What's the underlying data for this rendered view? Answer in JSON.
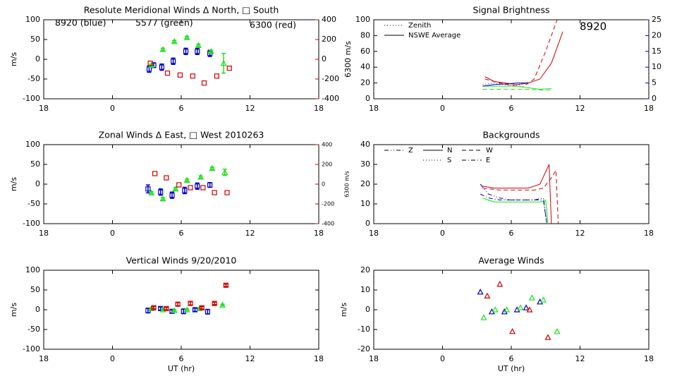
{
  "chart_data": [
    {
      "type": "scatter",
      "title": "Resolute Meridional Winds Δ North, □ South",
      "ylabel": "m/s",
      "y2label": "6300 m/s",
      "y2color": "#d00000",
      "xlim": [
        -6,
        18
      ],
      "xticks": [
        {
          "value": -6,
          "label": "18"
        },
        0,
        6,
        12,
        18
      ],
      "ylim": [
        -100,
        100
      ],
      "yticks": [
        -100,
        -50,
        0,
        50,
        100
      ],
      "y2lim": [
        -400,
        400
      ],
      "y2ticks": [
        -400,
        -200,
        0,
        200,
        400
      ],
      "annotations": [
        {
          "text": "8920 (blue)",
          "color": "#0000c0"
        },
        {
          "text": "5577 (green)",
          "color": "#20e020"
        },
        {
          "text": "6300 (red)",
          "color": "#d00000"
        }
      ],
      "series": [
        {
          "color": "#0000c0",
          "marker": "square",
          "x": [
            3.2,
            3.6,
            4.3,
            5.3,
            6.4,
            7.4,
            8.5
          ],
          "values": [
            -25,
            -15,
            -20,
            -5,
            20,
            20,
            15
          ],
          "errors": [
            8,
            6,
            8,
            8,
            8,
            8,
            8
          ]
        },
        {
          "color": "#20e020",
          "marker": "triangle",
          "x": [
            3.4,
            4.4,
            5.4,
            6.5,
            7.5,
            8.6,
            9.7
          ],
          "values": [
            -15,
            25,
            45,
            55,
            35,
            20,
            -10
          ],
          "errors": [
            3,
            3,
            3,
            3,
            3,
            3,
            25
          ]
        },
        {
          "color": "#d00000",
          "marker": "square",
          "axis": "y2",
          "x": [
            3.3,
            4.8,
            5.9,
            7.0,
            8.0,
            9.1,
            10.2
          ],
          "values": [
            -40,
            -140,
            -160,
            -170,
            -240,
            -170,
            -90
          ]
        }
      ]
    },
    {
      "type": "line",
      "title": "Signal Brightness",
      "y2color": "#0000c0",
      "xlim": [
        -6,
        18
      ],
      "xticks": [
        {
          "value": -6,
          "label": "18"
        },
        0,
        6,
        12,
        18
      ],
      "ylim": [
        0,
        100
      ],
      "yticks": [
        0,
        20,
        40,
        60,
        80,
        100
      ],
      "y2lim": [
        0,
        25
      ],
      "y2ticks": [
        0,
        5,
        10,
        15,
        20,
        25
      ],
      "annotations": [
        {
          "text": "8920",
          "color": "#0000c0"
        }
      ],
      "legend": [
        {
          "label": "Zenith",
          "style": "dotted"
        },
        {
          "label": "NSWE Average",
          "style": "solid"
        }
      ],
      "series": [
        {
          "color": "#d00000",
          "style": "solid",
          "x": [
            3.7,
            4.5,
            5.5,
            6.5,
            7.5,
            8.5,
            9.5,
            10.5
          ],
          "values": [
            28,
            22,
            20,
            18,
            20,
            25,
            45,
            85
          ]
        },
        {
          "color": "#d00000",
          "style": "dashed",
          "x": [
            3.7,
            5,
            6,
            7,
            8,
            9,
            10
          ],
          "values": [
            25,
            20,
            17,
            15,
            25,
            60,
            100
          ]
        },
        {
          "color": "#20e020",
          "style": "solid",
          "x": [
            3.5,
            4.5,
            5.5,
            6.5,
            7.5,
            8.5,
            9.5
          ],
          "values": [
            16,
            16,
            16,
            16,
            14,
            12,
            13
          ]
        },
        {
          "color": "#20e020",
          "style": "dashed",
          "x": [
            3.5,
            4.5,
            5.5,
            6.5,
            7.5,
            8.5,
            9.5
          ],
          "values": [
            12,
            12,
            12,
            12,
            12,
            11,
            11
          ]
        },
        {
          "color": "#0000c0",
          "style": "solid",
          "axis": "y2",
          "x": [
            3.5,
            4.5,
            5.5,
            6.5,
            7.5
          ],
          "values": [
            4,
            4.5,
            4.7,
            5,
            5
          ]
        },
        {
          "color": "#0000c0",
          "style": "dotted",
          "axis": "y2",
          "x": [
            3.5,
            4.5,
            5.5,
            6.5,
            7.5
          ],
          "values": [
            4.5,
            5,
            4.5,
            4.2,
            5.2
          ]
        }
      ]
    },
    {
      "type": "scatter",
      "title": "Zonal Winds Δ East, □ West 2010263",
      "ylabel": "m/s",
      "y2label": "6300 m/s",
      "y2color": "#d00000",
      "xlim": [
        -6,
        18
      ],
      "xticks": [
        {
          "value": -6,
          "label": "18"
        },
        0,
        6,
        12,
        18
      ],
      "ylim": [
        -100,
        100
      ],
      "yticks": [
        -100,
        -50,
        0,
        50,
        100
      ],
      "y2lim": [
        -400,
        400
      ],
      "y2ticks": [
        -400,
        -200,
        0,
        200,
        400
      ],
      "series": [
        {
          "color": "#0000c0",
          "marker": "square",
          "x": [
            3.1,
            4.2,
            5.2,
            6.3,
            7.4,
            8.5
          ],
          "values": [
            -12,
            -20,
            -28,
            -16,
            -5,
            -2
          ],
          "errors": [
            10,
            8,
            8,
            8,
            8,
            6
          ]
        },
        {
          "color": "#20e020",
          "marker": "triangle",
          "x": [
            3.4,
            4.4,
            5.5,
            6.5,
            7.7,
            8.7,
            9.8
          ],
          "values": [
            -22,
            -37,
            -12,
            10,
            18,
            40,
            30
          ],
          "errors": [
            3,
            3,
            3,
            3,
            3,
            3,
            8
          ]
        },
        {
          "color": "#d00000",
          "marker": "square",
          "axis": "y2",
          "x": [
            3.7,
            4.7,
            5.8,
            6.8,
            7.9,
            8.9,
            10.0
          ],
          "values": [
            107,
            64,
            -7,
            -36,
            -36,
            -86,
            -86
          ]
        }
      ]
    },
    {
      "type": "line",
      "title": "Backgrounds",
      "xlim": [
        -6,
        18
      ],
      "xticks": [
        {
          "value": -6,
          "label": "18"
        },
        0,
        6,
        12,
        18
      ],
      "ylim": [
        0,
        40
      ],
      "yticks": [
        0,
        10,
        20,
        30,
        40
      ],
      "legend": [
        {
          "label": "Z",
          "style": "dashdotdot"
        },
        {
          "label": "N",
          "style": "solid"
        },
        {
          "label": "W",
          "style": "dashed"
        },
        {
          "label": "S",
          "style": "dotted"
        },
        {
          "label": "E",
          "style": "dashdot"
        }
      ],
      "series": [
        {
          "color": "#d00000",
          "style": "solid",
          "x": [
            3.5,
            4.5,
            5.5,
            6.5,
            7.5,
            8.5,
            9.3,
            9.5
          ],
          "values": [
            19,
            18,
            18,
            18,
            18,
            20,
            30,
            0
          ]
        },
        {
          "color": "#d00000",
          "style": "dashed",
          "x": [
            3.5,
            5,
            6.5,
            8,
            8.8,
            9.6,
            9.9,
            10.1
          ],
          "values": [
            18,
            17,
            17,
            17,
            18,
            24,
            27,
            0
          ]
        },
        {
          "color": "#0000c0",
          "style": "dashdotdot",
          "x": [
            3.3,
            4,
            5,
            6,
            7,
            8,
            8.8,
            9.1
          ],
          "values": [
            20,
            15,
            13,
            12,
            12,
            12,
            13,
            0
          ]
        },
        {
          "color": "#0000c0",
          "style": "dashdot",
          "x": [
            3.3,
            4,
            5,
            6,
            7,
            8,
            8.8,
            9.1
          ],
          "values": [
            15,
            13,
            12,
            12,
            12,
            12,
            12,
            0
          ]
        },
        {
          "color": "#20e020",
          "style": "dotted",
          "x": [
            3.5,
            4.5,
            5.5,
            6.5,
            7.5,
            8.5,
            9.0,
            9.2
          ],
          "values": [
            12,
            11,
            11,
            11,
            11,
            11,
            11,
            0
          ]
        },
        {
          "color": "#20e020",
          "style": "solid",
          "x": [
            3.5,
            4.5,
            5.5,
            6.5,
            7.5,
            8.5,
            9.0,
            9.2
          ],
          "values": [
            13,
            11,
            11,
            11,
            11,
            11,
            12,
            0
          ]
        }
      ]
    },
    {
      "type": "scatter",
      "title": "Vertical Winds 9/20/2010",
      "ylabel": "m/s",
      "xlabel": "UT (hr)",
      "xlim": [
        -6,
        18
      ],
      "xticks": [
        {
          "value": -6,
          "label": "18"
        },
        0,
        6,
        12,
        18
      ],
      "ylim": [
        -100,
        100
      ],
      "yticks": [
        -100,
        -50,
        0,
        50,
        100
      ],
      "series": [
        {
          "color": "#0000c0",
          "marker": "square",
          "x": [
            3.1,
            4.2,
            5.2,
            6.2,
            7.2,
            8.3
          ],
          "values": [
            -2,
            3,
            -4,
            -4,
            0,
            -5
          ],
          "errors": [
            6,
            4,
            4,
            6,
            4,
            6
          ]
        },
        {
          "color": "#20e020",
          "marker": "triangle",
          "x": [
            3.4,
            4.4,
            5.4,
            6.5,
            7.6,
            9.6
          ],
          "values": [
            3,
            0,
            -2,
            0,
            3,
            12
          ],
          "errors": [
            2,
            2,
            2,
            2,
            2,
            2
          ]
        },
        {
          "color": "#d00000",
          "marker": "square",
          "x": [
            3.6,
            4.7,
            5.7,
            6.8,
            7.8,
            8.9,
            9.9
          ],
          "values": [
            5,
            3,
            14,
            16,
            5,
            16,
            62
          ],
          "errors": [
            3,
            3,
            4,
            4,
            3,
            3,
            3
          ]
        }
      ]
    },
    {
      "type": "scatter",
      "title": "Average Winds",
      "ylabel": "m/s",
      "xlabel": "UT (hr)",
      "xlim": [
        -6,
        18
      ],
      "xticks": [
        {
          "value": -6,
          "label": "18"
        },
        0,
        6,
        12,
        18
      ],
      "ylim": [
        -20,
        20
      ],
      "yticks": [
        -20,
        -10,
        0,
        10,
        20
      ],
      "series": [
        {
          "color": "#0000c0",
          "marker": "triangle",
          "x": [
            3.3,
            4.3,
            5.4,
            6.5,
            7.3,
            8.5
          ],
          "values": [
            9,
            -1,
            -1,
            0,
            1,
            4
          ]
        },
        {
          "color": "#20e020",
          "marker": "triangle",
          "x": [
            3.6,
            4.6,
            5.6,
            6.8,
            7.8,
            8.8,
            10.0
          ],
          "values": [
            -4,
            0,
            0,
            1,
            6,
            5,
            -11
          ]
        },
        {
          "color": "#d00000",
          "marker": "triangle",
          "x": [
            3.9,
            5.0,
            6.1,
            7.6,
            9.2
          ],
          "values": [
            7,
            13,
            -11,
            0,
            -14
          ]
        }
      ]
    }
  ]
}
